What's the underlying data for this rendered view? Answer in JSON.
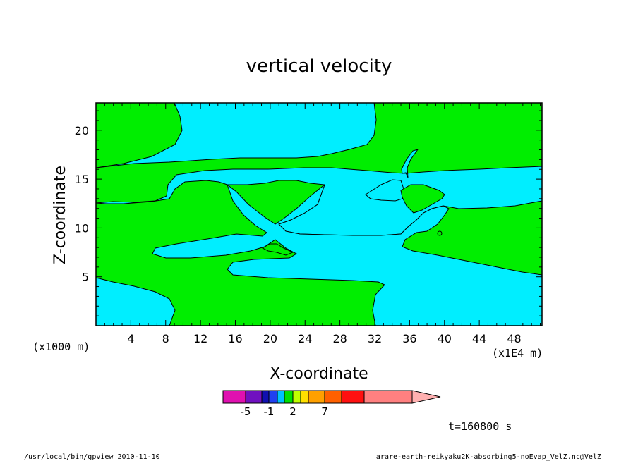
{
  "chart_data": {
    "type": "contour",
    "title": "vertical velocity",
    "xlabel": "X-coordinate",
    "ylabel": "Z-coordinate",
    "x_unit_note": "(x1E4 m)",
    "y_unit_note": "(x1000 m)",
    "xlim": [
      0,
      51.2
    ],
    "ylim": [
      0,
      22.8
    ],
    "x_ticks": [
      "4",
      "8",
      "12",
      "16",
      "20",
      "24",
      "28",
      "32",
      "36",
      "40",
      "44",
      "48"
    ],
    "x_tick_values": [
      4,
      8,
      12,
      16,
      20,
      24,
      28,
      32,
      36,
      40,
      44,
      48
    ],
    "y_ticks": [
      "5",
      "10",
      "15",
      "20"
    ],
    "y_tick_values": [
      5,
      10,
      15,
      20
    ],
    "colorbar": {
      "labels": [
        "-5",
        "-1",
        "2",
        "7"
      ],
      "label_values": [
        -5,
        -1,
        2,
        7
      ],
      "colors": [
        "#e010b0",
        "#7010c0",
        "#1010b0",
        "#2040f0",
        "#00c0ff",
        "#00e000",
        "#c0ff00",
        "#ffe000",
        "#ffa000",
        "#ff6000",
        "#ff1010",
        "#ff8080",
        "#ffb0b0"
      ]
    },
    "fill_colors": {
      "positive": "#00ee00",
      "negative": "#00eeff"
    },
    "time_label": "t=160800 s"
  },
  "footer": {
    "left": "/usr/local/bin/gpview  2010-11-10",
    "right": "arare-earth-reikyaku2K-absorbing5-noEvap_VelZ.nc@VelZ"
  }
}
